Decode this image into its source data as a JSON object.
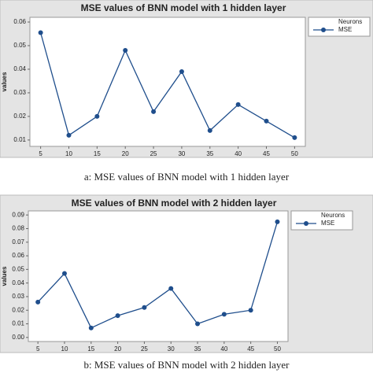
{
  "chart_data": [
    {
      "type": "line",
      "title": "MSE values of BNN model with 1 hidden layer",
      "y_label": "values",
      "legend_title": "Neurons",
      "caption": "a: MSE values of BNN model with 1 hidden layer",
      "x": [
        5,
        10,
        15,
        20,
        25,
        30,
        35,
        40,
        45,
        50
      ],
      "series": [
        {
          "name": "MSE",
          "color": "#1f4e8c",
          "values": [
            0.0555,
            0.012,
            0.02,
            0.048,
            0.022,
            0.039,
            0.014,
            0.025,
            0.018,
            0.011
          ]
        }
      ],
      "xlim": [
        3.1,
        51.9
      ],
      "xticks": [
        5,
        10,
        15,
        20,
        25,
        30,
        35,
        40,
        45,
        50
      ],
      "ylim": [
        0.0073,
        0.062
      ],
      "yticks": [
        0.01,
        0.02,
        0.03,
        0.04,
        0.05,
        0.06
      ]
    },
    {
      "type": "line",
      "title": "MSE values of BNN model with 2 hidden layer",
      "y_label": "values",
      "legend_title": "Neurons",
      "caption": "b: MSE values of BNN model with 2 hidden layer",
      "x": [
        5,
        10,
        15,
        20,
        25,
        30,
        35,
        40,
        45,
        50
      ],
      "series": [
        {
          "name": "MSE",
          "color": "#1f4e8c",
          "values": [
            0.026,
            0.047,
            0.007,
            0.016,
            0.022,
            0.036,
            0.01,
            0.017,
            0.02,
            0.085
          ]
        }
      ],
      "xlim": [
        3.2,
        52
      ],
      "xticks": [
        5,
        10,
        15,
        20,
        25,
        30,
        35,
        40,
        45,
        50
      ],
      "ylim": [
        -0.003,
        0.093
      ],
      "yticks": [
        {
          "value": 0,
          "label": "0.00"
        },
        0.01,
        0.02,
        0.03,
        0.04,
        0.05,
        0.06,
        0.07,
        0.08,
        0.09
      ]
    }
  ]
}
